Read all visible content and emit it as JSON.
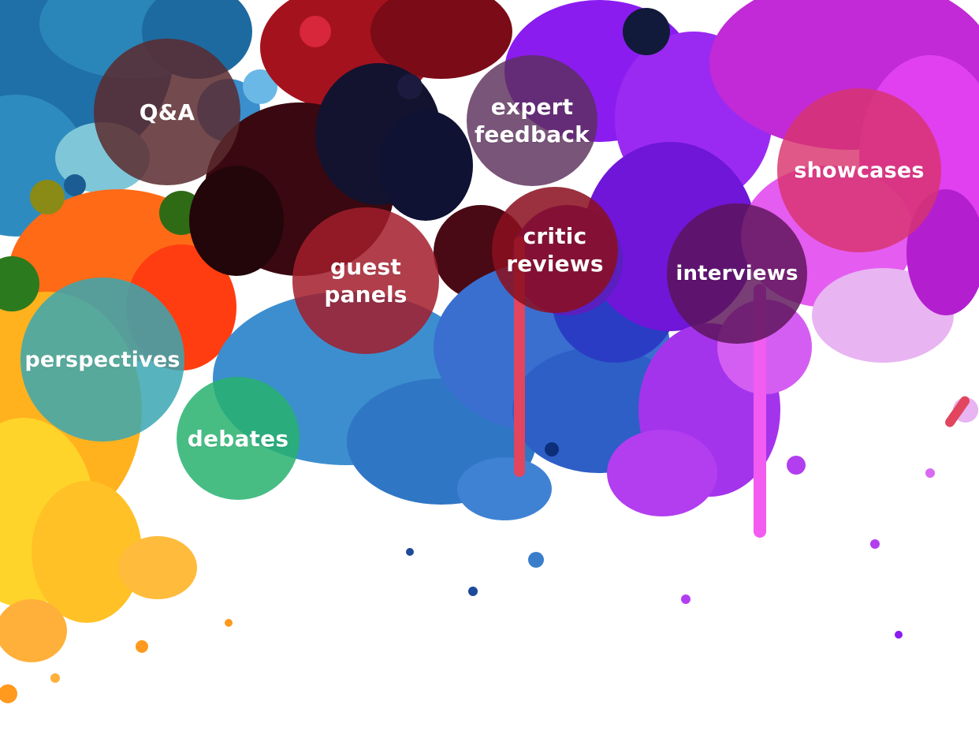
{
  "bubbles": [
    {
      "id": "qa",
      "label": "Q&A",
      "color": "#5a2a2e",
      "opacity": 0.85
    },
    {
      "id": "expert",
      "label": "expert\nfeedback",
      "color": "#5b2f5c",
      "opacity": 0.82
    },
    {
      "id": "showcases",
      "label": "showcases",
      "color": "#d8336c",
      "opacity": 0.82
    },
    {
      "id": "guest",
      "label": "guest\npanels",
      "color": "#a21d2b",
      "opacity": 0.85
    },
    {
      "id": "critic",
      "label": "critic\nreviews",
      "color": "#8b0f1e",
      "opacity": 0.86
    },
    {
      "id": "interviews",
      "label": "interviews",
      "color": "#5a1357",
      "opacity": 0.82
    },
    {
      "id": "perspectives",
      "label": "perspectives",
      "color": "#3aa7b3",
      "opacity": 0.85
    },
    {
      "id": "debates",
      "label": "debates",
      "color": "#27b26e",
      "opacity": 0.85
    }
  ]
}
